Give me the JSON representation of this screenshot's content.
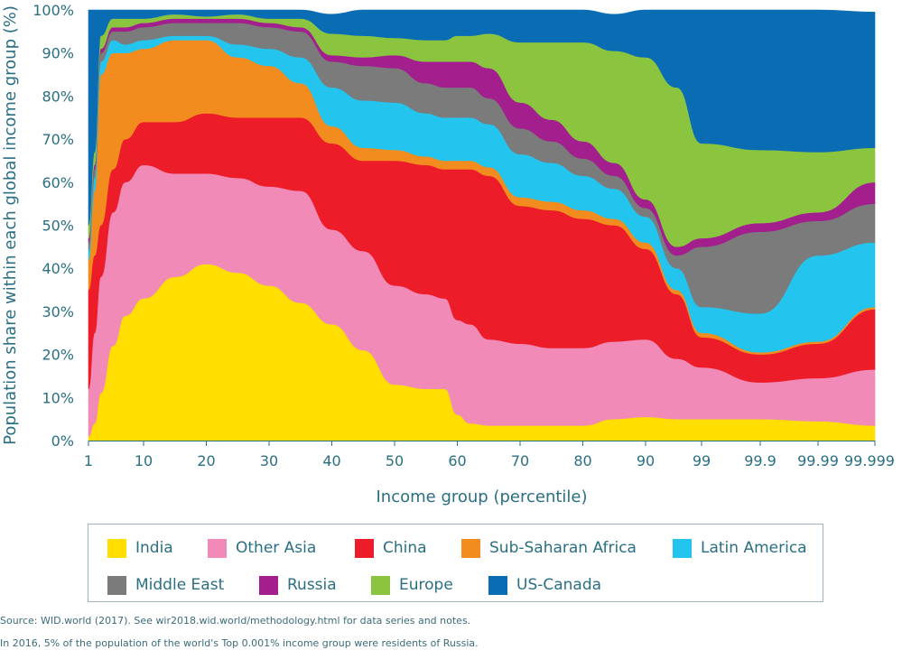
{
  "chart_data": {
    "type": "area",
    "stacked": true,
    "xlabel": "Income group (percentile)",
    "ylabel": "Population share within each global income group (%)",
    "ylim": [
      0,
      100
    ],
    "x_ticks": [
      "1",
      "10",
      "20",
      "30",
      "40",
      "50",
      "60",
      "70",
      "80",
      "90",
      "99",
      "99.9",
      "99.99",
      "99.999"
    ],
    "y_ticks": [
      "0%",
      "10%",
      "20%",
      "30%",
      "40%",
      "50%",
      "60%",
      "70%",
      "80%",
      "90%",
      "100%"
    ],
    "x": [
      1,
      2,
      3,
      5,
      7,
      10,
      15,
      20,
      25,
      30,
      35,
      40,
      45,
      50,
      55,
      58,
      60,
      62,
      65,
      70,
      75,
      80,
      85,
      90,
      95,
      99,
      99.9,
      99.99,
      99.999
    ],
    "series": [
      {
        "name": "India",
        "color": "#ffde00",
        "values": [
          1,
          4,
          11,
          22,
          29,
          33,
          38,
          41,
          39,
          36,
          32,
          27,
          21,
          13,
          12,
          12,
          6,
          4,
          3.5,
          3.5,
          3.5,
          3.5,
          5,
          5.5,
          5,
          5,
          5,
          4.5,
          3.5
        ]
      },
      {
        "name": "Other Asia",
        "color": "#f18ab7",
        "values": [
          11,
          21,
          27,
          31,
          31,
          31,
          24,
          21,
          22,
          23,
          26,
          22,
          23,
          23,
          22,
          21,
          22,
          23,
          20,
          19,
          18,
          18,
          18,
          18,
          14,
          12,
          8.5,
          10,
          13
        ]
      },
      {
        "name": "China",
        "color": "#ec1c29",
        "values": [
          23,
          18,
          12,
          10,
          10,
          10,
          12,
          14,
          14,
          16,
          17,
          20,
          21,
          29,
          30,
          30,
          35,
          36,
          38,
          32,
          32,
          30,
          27,
          21,
          15,
          7,
          6.5,
          8,
          14
        ]
      },
      {
        "name": "Sub-Saharan Africa",
        "color": "#f28c1e",
        "values": [
          7,
          15,
          35,
          27,
          20,
          17,
          19,
          17,
          14,
          12,
          8,
          4,
          3,
          2.5,
          2,
          2,
          2,
          2,
          2,
          2,
          2,
          2,
          1.5,
          1.5,
          1,
          1,
          0.5,
          0.5,
          0.5
        ]
      },
      {
        "name": "Latin America",
        "color": "#23c5ef",
        "values": [
          2,
          3,
          3,
          3,
          2,
          2,
          1,
          1,
          3,
          4,
          6,
          9,
          11,
          11,
          10,
          10,
          10,
          10,
          10,
          10,
          9,
          8,
          7,
          6,
          5,
          6,
          9,
          20,
          15
        ]
      },
      {
        "name": "Middle East",
        "color": "#7b7b7c",
        "values": [
          2,
          2,
          2,
          2,
          3,
          3,
          3,
          3,
          5,
          5,
          6,
          6,
          8,
          8,
          7,
          7,
          7,
          7,
          6,
          6,
          5,
          4,
          3,
          2,
          3,
          14,
          19,
          8,
          9
        ]
      },
      {
        "name": "Russia",
        "color": "#a21f8d",
        "values": [
          1,
          1,
          1,
          1,
          1,
          1,
          1,
          1,
          1,
          1,
          1,
          1.5,
          2,
          3,
          5,
          6,
          6,
          6,
          7,
          6,
          5,
          4,
          3,
          2,
          2,
          2,
          2,
          2,
          5
        ]
      },
      {
        "name": "Europe",
        "color": "#8bc53f",
        "values": [
          3,
          3,
          3,
          2,
          2,
          1,
          1,
          0.5,
          1,
          1,
          2,
          5,
          5,
          4,
          5,
          5,
          6,
          6,
          8,
          14,
          18,
          23,
          26,
          33,
          37,
          22,
          17,
          14,
          8
        ]
      },
      {
        "name": "US-Canada",
        "color": "#0a6db4",
        "values": [
          50,
          33,
          6,
          2,
          2,
          2,
          1,
          1.5,
          1,
          2,
          2,
          4.5,
          6,
          6.5,
          7,
          7,
          6,
          6,
          5.5,
          7.5,
          7.5,
          7.5,
          8.5,
          11,
          18,
          31,
          32.5,
          33,
          31.5
        ]
      }
    ],
    "legend": {
      "row1": [
        "India",
        "Other Asia",
        "China",
        "Sub-Saharan Africa",
        "Latin America"
      ],
      "row2": [
        "Middle East",
        "Russia",
        "Europe",
        "US-Canada"
      ]
    }
  },
  "notes": {
    "source": "Source: WID.world (2017). See wir2018.wid.world/methodology.html for data series and notes.",
    "caption": "In 2016, 5% of the population of the world's Top 0.001% income group were residents of Russia."
  }
}
